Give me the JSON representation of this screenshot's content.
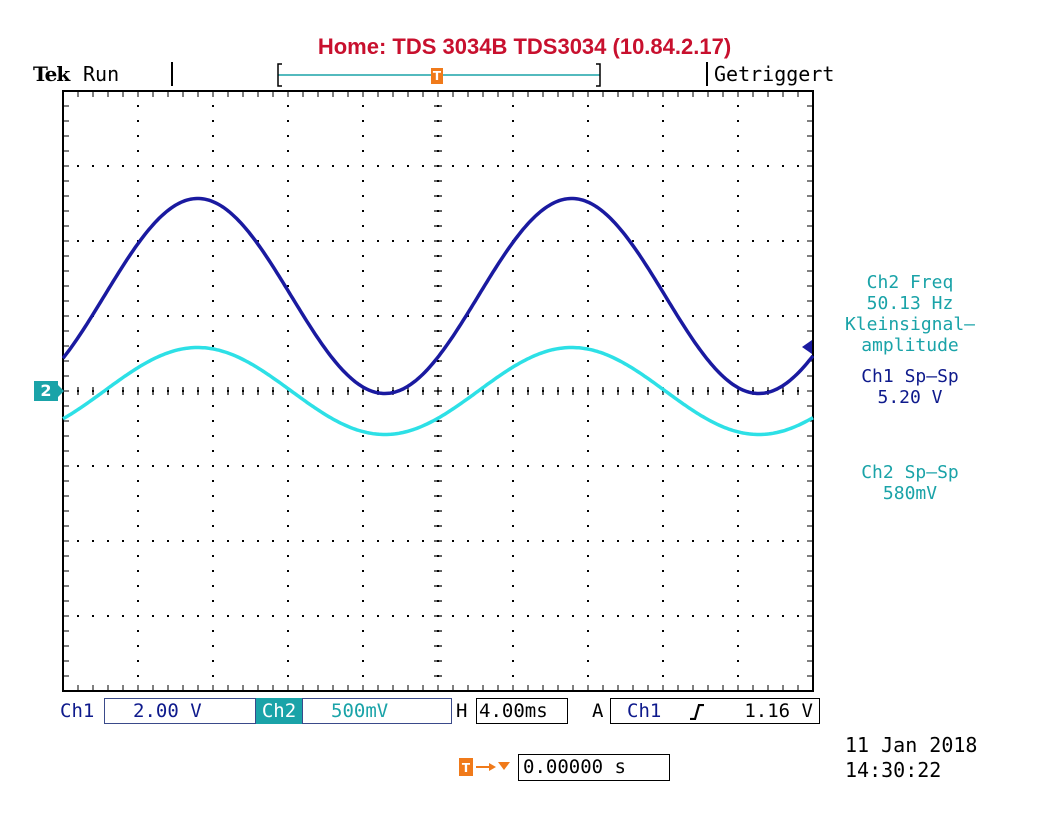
{
  "header": {
    "title": "Home:  TDS 3034B  TDS3034  (10.84.2.17)",
    "brand": "Tek",
    "run_status": "Run",
    "trigger_status": "Getriggert"
  },
  "channel_marker": {
    "ch2_label": "2"
  },
  "measurements": [
    {
      "label": "Ch2 Freq",
      "value": "50.13 Hz",
      "color": "#1aa3a8"
    },
    {
      "label": "Kleinsignal–\namplitude",
      "value": "",
      "color": "#1aa3a8"
    },
    {
      "label": "Ch1 Sp–Sp",
      "value": "5.20 V",
      "color": "#0e1a8c"
    },
    {
      "label": "Ch2 Sp–Sp",
      "value": "580mV",
      "color": "#1aa3a8"
    }
  ],
  "bottom_bar": {
    "ch1_label": "Ch1",
    "ch1_scale": "2.00 V",
    "ch2_label": "Ch2",
    "ch2_scale": "500mV",
    "time_label": "H",
    "time_scale": "4.00ms",
    "trigger_mode": "A",
    "trigger_source": "Ch1",
    "trigger_slope_icon": "rising-edge-icon",
    "trigger_level": "1.16 V"
  },
  "trigger_delay": {
    "icon": "trigger-delay-icon",
    "value": "0.00000 s"
  },
  "datetime": {
    "date": "11 Jan  2018",
    "time": "14:30:22"
  },
  "colors": {
    "ch1": "#1a1aa0",
    "ch2": "#2de0e6",
    "trigger": "#f07a1a",
    "grid": "#000000"
  },
  "chart_data": {
    "type": "line",
    "grid_divisions": {
      "x": 10,
      "y": 8
    },
    "time_per_div_ms": 4.0,
    "series": [
      {
        "name": "Ch1",
        "frequency_hz": 50.13,
        "peak_to_peak_v": 5.2,
        "volts_per_div": 2.0
      },
      {
        "name": "Ch2",
        "frequency_hz": 50.13,
        "peak_to_peak_v": 0.58,
        "volts_per_div": 0.5
      }
    ]
  }
}
